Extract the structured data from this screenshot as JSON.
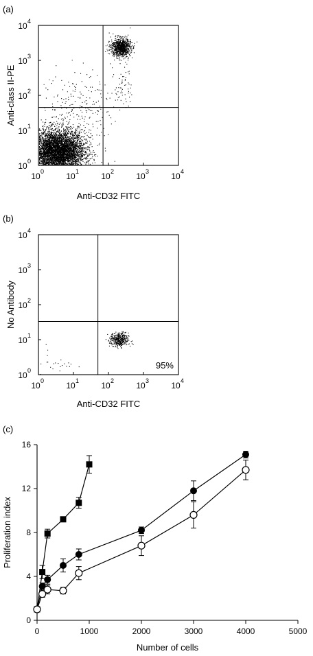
{
  "chart_data": [
    {
      "panel": "(a)",
      "type": "scatter",
      "xlabel": "Anti-CD32 FITC",
      "ylabel": "Anti-class II-PE",
      "x_scale": "log",
      "y_scale": "log",
      "xlim": [
        1,
        10000
      ],
      "ylim": [
        1,
        10000
      ],
      "x_ticks": [
        {
          "base": "10",
          "exp": "0"
        },
        {
          "base": "10",
          "exp": "1"
        },
        {
          "base": "10",
          "exp": "2"
        },
        {
          "base": "10",
          "exp": "3"
        },
        {
          "base": "10",
          "exp": "4"
        }
      ],
      "y_ticks": [
        {
          "base": "10",
          "exp": "0"
        },
        {
          "base": "10",
          "exp": "1"
        },
        {
          "base": "10",
          "exp": "2"
        },
        {
          "base": "10",
          "exp": "3"
        },
        {
          "base": "10",
          "exp": "4"
        }
      ],
      "quadrant_gates": {
        "x": 70,
        "y": 45
      },
      "clusters": [
        {
          "center": [
            3.5,
            2.5
          ],
          "spread_log": [
            0.38,
            0.3
          ],
          "events": 5200
        },
        {
          "center": [
            220,
            2400
          ],
          "spread_log": [
            0.14,
            0.13
          ],
          "events": 900
        },
        {
          "center": [
            12,
            40
          ],
          "spread_log": [
            0.5,
            0.55
          ],
          "events": 260
        },
        {
          "center": [
            260,
            200
          ],
          "spread_log": [
            0.12,
            0.35
          ],
          "events": 60
        }
      ]
    },
    {
      "panel": "(b)",
      "type": "scatter",
      "xlabel": "Anti-CD32 FITC",
      "ylabel": "No Antibody",
      "x_scale": "log",
      "y_scale": "log",
      "xlim": [
        1,
        10000
      ],
      "ylim": [
        1,
        10000
      ],
      "x_ticks": [
        {
          "base": "10",
          "exp": "0"
        },
        {
          "base": "10",
          "exp": "1"
        },
        {
          "base": "10",
          "exp": "2"
        },
        {
          "base": "10",
          "exp": "3"
        },
        {
          "base": "10",
          "exp": "4"
        }
      ],
      "y_ticks": [
        {
          "base": "10",
          "exp": "0"
        },
        {
          "base": "10",
          "exp": "1"
        },
        {
          "base": "10",
          "exp": "2"
        },
        {
          "base": "10",
          "exp": "3"
        },
        {
          "base": "10",
          "exp": "4"
        }
      ],
      "quadrant_gates": {
        "x": 50,
        "y": 33
      },
      "annotation": "95%",
      "clusters": [
        {
          "center": [
            200,
            10
          ],
          "spread_log": [
            0.13,
            0.1
          ],
          "events": 420
        },
        {
          "center": [
            3,
            2.2
          ],
          "spread_log": [
            0.3,
            0.25
          ],
          "events": 28
        }
      ]
    },
    {
      "panel": "(c)",
      "type": "line",
      "xlabel": "Number of cells",
      "ylabel": "Proliferation index",
      "xlim": [
        0,
        5000
      ],
      "ylim": [
        0,
        16
      ],
      "x_ticks": [
        "0",
        "1000",
        "2000",
        "3000",
        "4000",
        "5000"
      ],
      "y_ticks": [
        "0",
        "4",
        "8",
        "12",
        "16"
      ],
      "series": [
        {
          "marker": "square-filled",
          "points": [
            {
              "x": 0,
              "y": 1.0,
              "err": 0
            },
            {
              "x": 100,
              "y": 4.4,
              "err": 0.6
            },
            {
              "x": 200,
              "y": 7.9,
              "err": 0.4
            },
            {
              "x": 500,
              "y": 9.2,
              "err": 0.2
            },
            {
              "x": 800,
              "y": 10.7,
              "err": 0.5
            },
            {
              "x": 1000,
              "y": 14.2,
              "err": 0.8
            }
          ]
        },
        {
          "marker": "circle-filled",
          "points": [
            {
              "x": 0,
              "y": 1.0,
              "err": 0
            },
            {
              "x": 100,
              "y": 3.1,
              "err": 0.3
            },
            {
              "x": 200,
              "y": 3.7,
              "err": 0.4
            },
            {
              "x": 500,
              "y": 5.0,
              "err": 0.6
            },
            {
              "x": 800,
              "y": 6.0,
              "err": 0.5
            },
            {
              "x": 2000,
              "y": 8.2,
              "err": 0.3
            },
            {
              "x": 3000,
              "y": 11.8,
              "err": 0.9
            },
            {
              "x": 4000,
              "y": 15.1,
              "err": 0.3
            }
          ]
        },
        {
          "marker": "circle-open",
          "points": [
            {
              "x": 0,
              "y": 1.0,
              "err": 0
            },
            {
              "x": 100,
              "y": 2.4,
              "err": 0.3
            },
            {
              "x": 200,
              "y": 2.8,
              "err": 0.4
            },
            {
              "x": 500,
              "y": 2.7,
              "err": 0.3
            },
            {
              "x": 800,
              "y": 4.3,
              "err": 0.6
            },
            {
              "x": 2000,
              "y": 6.8,
              "err": 0.9
            },
            {
              "x": 3000,
              "y": 9.6,
              "err": 1.2
            },
            {
              "x": 4000,
              "y": 13.7,
              "err": 0.9
            }
          ]
        }
      ]
    }
  ]
}
